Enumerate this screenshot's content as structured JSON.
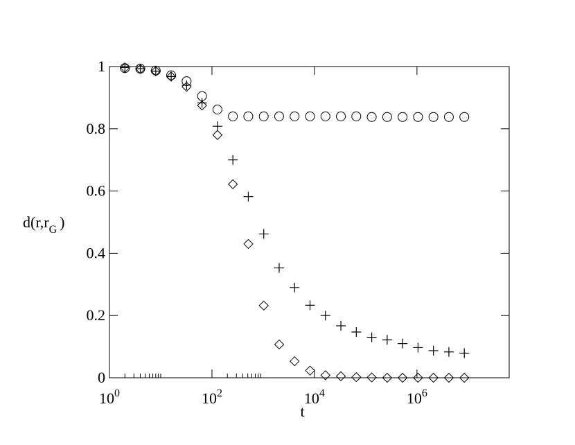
{
  "chart_data": {
    "type": "scatter",
    "xlabel": "t",
    "ylabel": "d(r,r_G)",
    "xscale": "log",
    "x": [
      2,
      4,
      8,
      16,
      32,
      64,
      128,
      256,
      512,
      1024,
      2048,
      4096,
      8192,
      16384,
      32768,
      65536,
      131072,
      262144,
      524288,
      1048576,
      2097152,
      4194304,
      8388608
    ],
    "series": [
      {
        "marker": "circle",
        "color": "#000000",
        "values": [
          0.995,
          0.993,
          0.987,
          0.972,
          0.953,
          0.905,
          0.862,
          0.84,
          0.84,
          0.84,
          0.84,
          0.84,
          0.84,
          0.84,
          0.84,
          0.84,
          0.838,
          0.838,
          0.838,
          0.838,
          0.838,
          0.838,
          0.838
        ]
      },
      {
        "marker": "plus",
        "color": "#000000",
        "values": [
          0.997,
          0.993,
          0.985,
          0.968,
          0.94,
          0.883,
          0.808,
          0.7,
          0.582,
          0.462,
          0.353,
          0.29,
          0.233,
          0.2,
          0.167,
          0.147,
          0.13,
          0.122,
          0.11,
          0.097,
          0.087,
          0.083,
          0.079
        ]
      },
      {
        "marker": "diamond",
        "color": "#000000",
        "values": [
          0.996,
          0.992,
          0.985,
          0.968,
          0.935,
          0.875,
          0.78,
          0.622,
          0.43,
          0.232,
          0.107,
          0.053,
          0.023,
          0.008,
          0.005,
          0.002,
          0.001,
          0,
          0,
          0,
          0,
          0,
          0
        ]
      }
    ],
    "xlim": [
      1,
      63000000
    ],
    "ylim": [
      0,
      1
    ],
    "xticks": [
      {
        "value": 1,
        "label": "10^0"
      },
      {
        "value": 100,
        "label": "10^2"
      },
      {
        "value": 10000,
        "label": "10^4"
      },
      {
        "value": 1000000,
        "label": "10^6"
      }
    ],
    "xminorticks": [
      2,
      3,
      4,
      5,
      6,
      7,
      8,
      9,
      10,
      200,
      300,
      400,
      500,
      600,
      700,
      800,
      900
    ],
    "yticks": [
      0,
      0.2,
      0.4,
      0.6,
      0.8,
      1
    ]
  }
}
